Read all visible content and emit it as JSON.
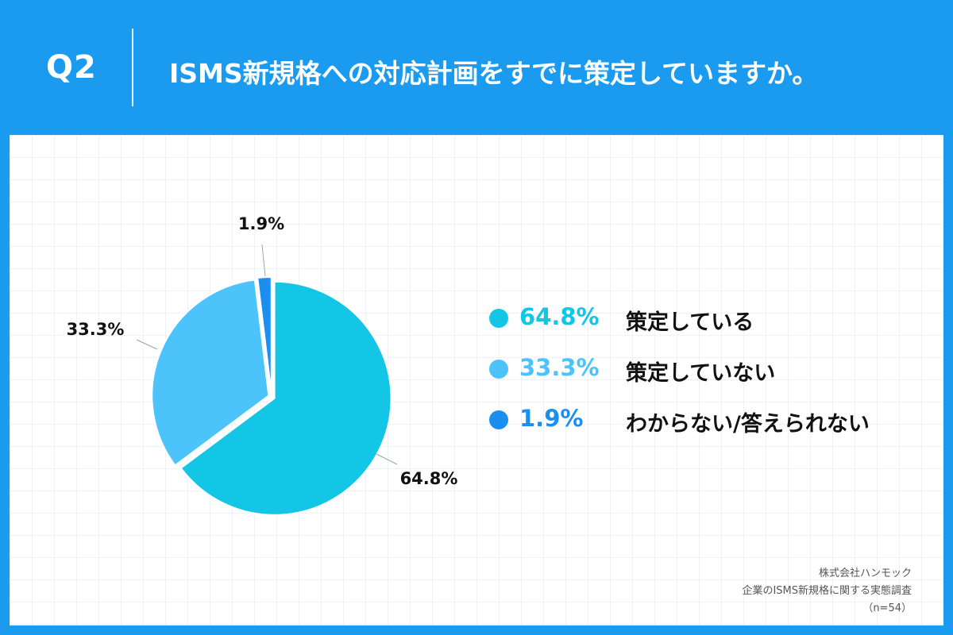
{
  "header": {
    "q_label": "Q2",
    "title": "ISMS新規格への対応計画をすでに策定していますか。"
  },
  "chart_data": {
    "type": "pie",
    "slices": [
      {
        "label": "策定している",
        "value": 64.8,
        "display": "64.8%",
        "color": "#14c6e6"
      },
      {
        "label": "策定していない",
        "value": 33.3,
        "display": "33.3%",
        "color": "#4cc3fa"
      },
      {
        "label": "わからない/答えられない",
        "value": 1.9,
        "display": "1.9%",
        "color": "#1a8ff0"
      }
    ],
    "legend_position": "right"
  },
  "source": {
    "company": "株式会社ハンモック",
    "survey": "企業のISMS新規格に関する実態調査",
    "sample": "（n=54）"
  }
}
